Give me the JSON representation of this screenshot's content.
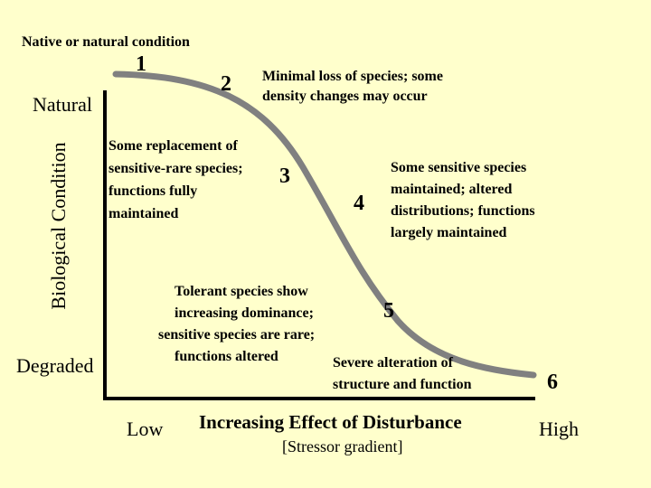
{
  "top_label": "Native or natural condition",
  "y_axis": {
    "label": "Biological Condition",
    "top_label": "Natural",
    "bottom_label": "Degraded"
  },
  "x_axis": {
    "title": "Increasing Effect of Disturbance",
    "subtitle": "[Stressor gradient]",
    "low_label": "Low",
    "high_label": "High"
  },
  "tiers": [
    {
      "number": "1"
    },
    {
      "number": "2",
      "lines": [
        "Minimal loss of species; some",
        "density changes may occur"
      ]
    },
    {
      "number": "3",
      "lines": [
        "Some replacement of",
        "sensitive-rare species;",
        "functions fully",
        "maintained"
      ]
    },
    {
      "number": "4",
      "lines": [
        "Some sensitive species",
        "maintained; altered",
        "distributions; functions",
        "largely maintained"
      ]
    },
    {
      "number": "5",
      "lines": [
        "Tolerant species show",
        "increasing dominance;",
        "sensitive species are rare;",
        "functions altered"
      ]
    },
    {
      "number": "6",
      "lines": [
        "Severe alteration of",
        "structure and function"
      ]
    }
  ],
  "colors": {
    "background": "#FFFFCC",
    "curve": "#808080",
    "axis": "#000000"
  }
}
